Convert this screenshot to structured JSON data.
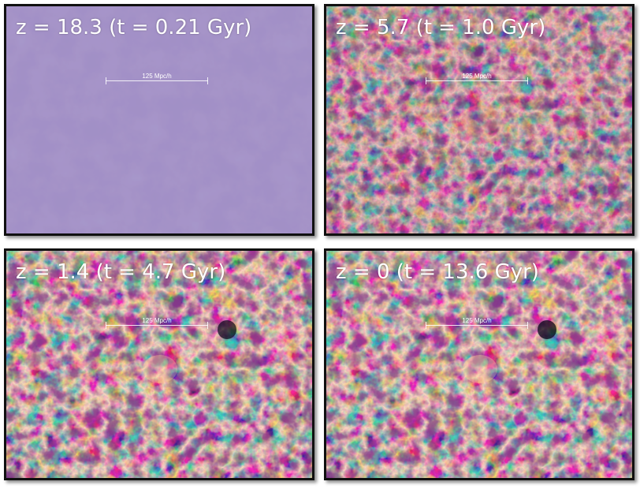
{
  "panels": [
    {
      "label": "z = 18.3 (t = 0.21 Gyr)",
      "scale_bar": "125 Mpc/h",
      "colors": {
        "base": "#8a74b6",
        "deep": "#5b4592",
        "light": "#d9cdef",
        "filament": "#f2e9ff"
      }
    },
    {
      "label": "z = 5.7 (t = 1.0 Gyr)",
      "scale_bar": "125 Mpc/h",
      "colors": {
        "base": "#4a2366",
        "deep": "#240f3c",
        "light": "#9a3d86",
        "filament": "#f0a878"
      }
    },
    {
      "label": "z = 1.4 (t = 4.7 Gyr)",
      "scale_bar": "125 Mpc/h",
      "colors": {
        "base": "#3c1c5c",
        "deep": "#140828",
        "light": "#a6449a",
        "filament": "#f6c47e"
      }
    },
    {
      "label": "z = 0 (t = 13.6 Gyr)",
      "scale_bar": "125 Mpc/h",
      "colors": {
        "base": "#3a1a5a",
        "deep": "#120724",
        "light": "#a8469c",
        "filament": "#f8cc84"
      }
    }
  ]
}
